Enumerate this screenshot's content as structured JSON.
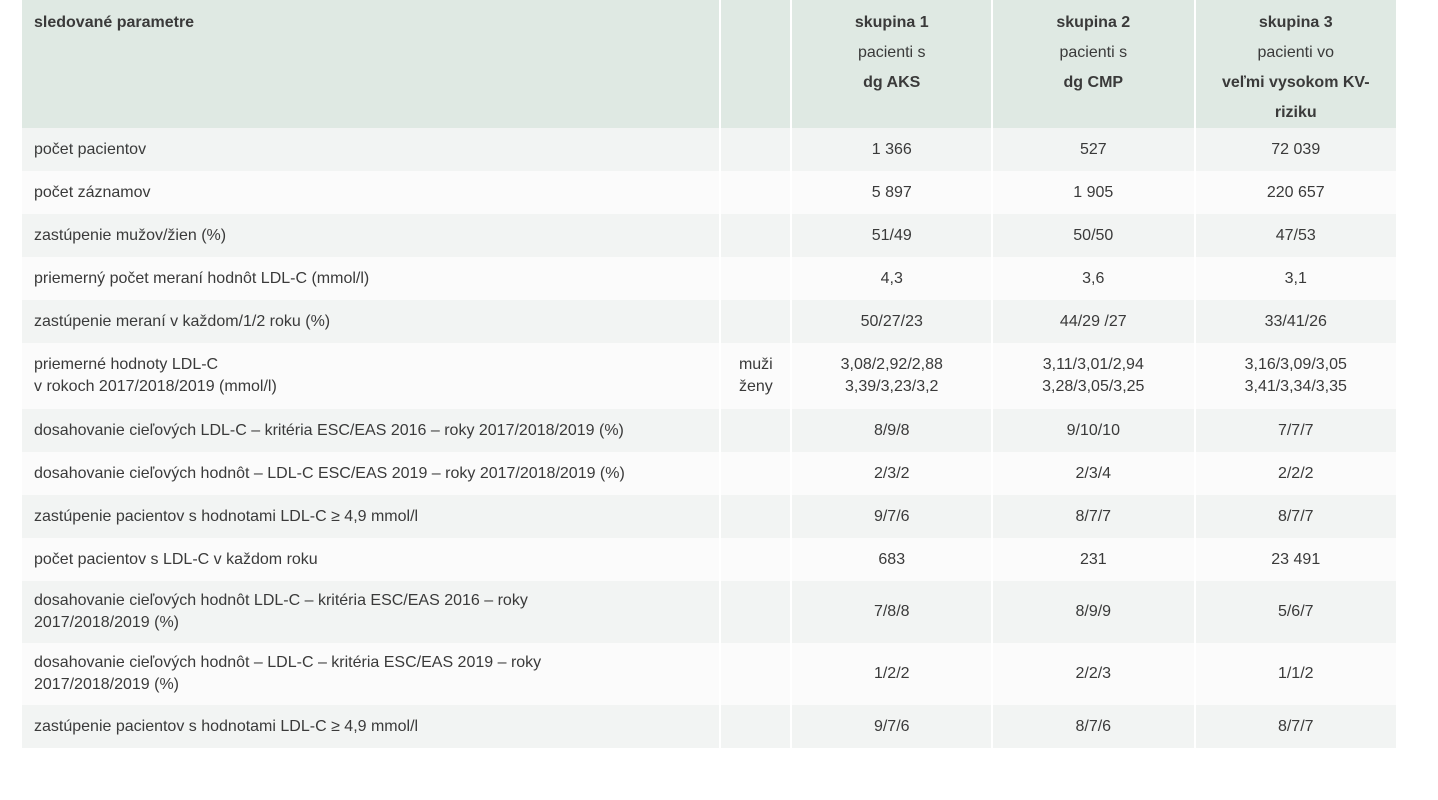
{
  "table": {
    "header": {
      "param": "sledované parametre",
      "groups": [
        {
          "title": "skupina 1",
          "line1": "pacienti s",
          "line2": "dg AKS"
        },
        {
          "title": "skupina 2",
          "line1": "pacienti s",
          "line2": "dg CMP"
        },
        {
          "title": "skupina 3",
          "line1": "pacienti vo",
          "line2": "veľmi vysokom KV-riziku"
        }
      ]
    },
    "rows": [
      {
        "label": "počet pacientov",
        "values": [
          "1 366",
          "527",
          "72 039"
        ]
      },
      {
        "label": "počet záznamov",
        "values": [
          "5 897",
          "1 905",
          "220 657"
        ]
      },
      {
        "label": "zastúpenie mužov/žien (%)",
        "values": [
          "51/49",
          "50/50",
          "47/53"
        ]
      },
      {
        "label": "priemerný počet meraní hodnôt LDL-C (mmol/l)",
        "values": [
          "4,3",
          "3,6",
          "3,1"
        ]
      },
      {
        "label": "zastúpenie meraní v každom/1/2 roku (%)",
        "values": [
          "50/27/23",
          "44/29 /27",
          "33/41/26"
        ]
      },
      {
        "label_lines": [
          "priemerné hodnoty LDL-C",
          "v rokoch 2017/2018/2019 (mmol/l)"
        ],
        "subrows": [
          {
            "sex": "muži",
            "values": [
              "3,08/2,92/2,88",
              "3,11/3,01/2,94",
              "3,16/3,09/3,05"
            ]
          },
          {
            "sex": "ženy",
            "values": [
              "3,39/3,23/3,2",
              "3,28/3,05/3,25",
              "3,41/3,34/3,35"
            ]
          }
        ]
      },
      {
        "label": "dosahovanie cieľových LDL-C – kritéria ESC/EAS 2016 – roky 2017/2018/2019 (%)",
        "values": [
          "8/9/8",
          "9/10/10",
          "7/7/7"
        ]
      },
      {
        "label": "dosahovanie cieľových hodnôt – LDL-C ESC/EAS 2019 – roky 2017/2018/2019 (%)",
        "values": [
          "2/3/2",
          "2/3/4",
          "2/2/2"
        ]
      },
      {
        "label": "zastúpenie pacientov s hodnotami  LDL-C ≥ 4,9 mmol/l",
        "values": [
          "9/7/6",
          "8/7/7",
          "8/7/7"
        ]
      },
      {
        "label": "počet pacientov s LDL-C v každom roku",
        "values": [
          "683",
          "231",
          "23 491"
        ]
      },
      {
        "label_lines": [
          "dosahovanie cieľových hodnôt LDL-C – kritéria ESC/EAS 2016 – roky",
          "2017/2018/2019 (%)"
        ],
        "values": [
          "7/8/8",
          "8/9/9",
          "5/6/7"
        ]
      },
      {
        "label_lines": [
          "dosahovanie cieľových hodnôt – LDL-C – kritéria ESC/EAS 2019 – roky",
          "2017/2018/2019 (%)"
        ],
        "values": [
          "1/2/2",
          "2/2/3",
          "1/1/2"
        ]
      },
      {
        "label": "zastúpenie pacientov s hodnotami LDL-C ≥ 4,9 mmol/l",
        "values": [
          "9/7/6",
          "8/7/6",
          "8/7/7"
        ]
      }
    ]
  }
}
